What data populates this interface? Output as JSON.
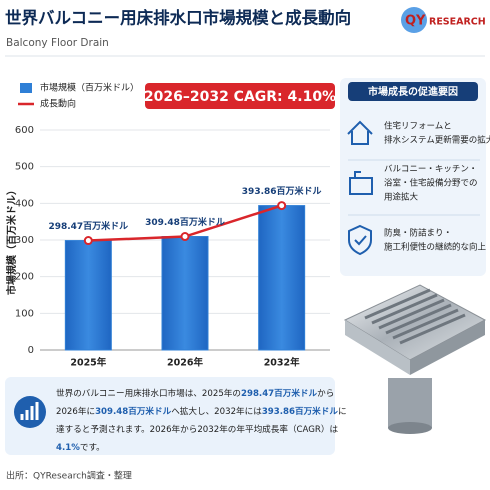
{
  "chart_data": {
    "type": "bar",
    "title": "世界バルコニー用床排水口市場規模と成長動向",
    "subtitle": "Balcony Floor Drain",
    "banner": "2026–2032 CAGR: 4.10%",
    "ylabel": "市場規模（百万米ドル）",
    "categories": [
      "2025年",
      "2026年",
      "2032年"
    ],
    "series": [
      {
        "name": "市場規模（百万米ドル）",
        "type": "bar",
        "color": "#2f7fd6",
        "values": [
          298.47,
          309.48,
          393.86
        ]
      },
      {
        "name": "成長動向",
        "type": "line",
        "color": "#d9262b",
        "values": [
          298.47,
          309.48,
          393.86
        ],
        "value_labels": [
          "298.47百万米ドル",
          "309.48百万米ドル",
          "393.86百万米ドル"
        ]
      }
    ],
    "ylim": [
      0,
      600
    ],
    "yticks": [
      0,
      100,
      200,
      300,
      400,
      500,
      600
    ],
    "grid": true
  },
  "logo": {
    "brand": "QY",
    "rest": "RESEARCH"
  },
  "sidebar": {
    "title": "市場成長の促進要因",
    "items": [
      [
        "住宅リフォームと",
        "排水システム更新需要の拡大"
      ],
      [
        "バルコニー・キッチン・",
        "浴室・住宅設備分野での",
        "用途拡大"
      ],
      [
        "防臭・防詰まり・",
        "施工利便性の継続的な向上"
      ]
    ]
  },
  "summary": {
    "lines": [
      [
        "世界のバルコニー用床排水口市場は、2025年の",
        {
          "text": "298.47百万米ドル",
          "bold": true
        },
        "から"
      ],
      [
        "2026年に",
        {
          "text": "309.48百万米ドル",
          "bold": true
        },
        "へ拡大し、2032年には",
        {
          "text": "393.86百万米ドル",
          "bold": true
        },
        "に"
      ],
      [
        "達すると予測されます。2026年から2032年の年平均成長率（CAGR）は"
      ],
      [
        {
          "text": "4.1%",
          "bold": true
        },
        "です。"
      ]
    ]
  },
  "source": "出所：QYResearch調査・整理"
}
